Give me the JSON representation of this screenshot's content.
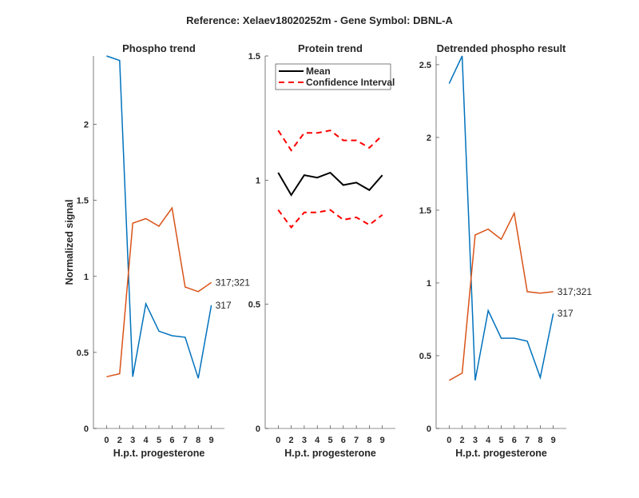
{
  "figure_title": "Reference:  Xelaev18020252m - Gene Symbol:  DBNL-A",
  "colors": {
    "blue": "#0072BD",
    "orange": "#D95319",
    "mean": "#000000",
    "ci": "#FF0000",
    "axis": "#262626"
  },
  "chart_data": [
    {
      "type": "line",
      "title": "Phospho trend",
      "xlabel": "H.p.t. progesterone",
      "ylabel": "Normalized signal",
      "categories": [
        "0",
        "2",
        "3",
        "4",
        "5",
        "6",
        "7",
        "8",
        "9"
      ],
      "ylim": [
        0,
        2.45
      ],
      "yticks": [
        0,
        0.5,
        1,
        1.5,
        2
      ],
      "ytick_labels": [
        "0",
        "0.5",
        "1",
        "1.5",
        "2"
      ],
      "series": [
        {
          "name": "317",
          "color": "blue",
          "values": [
            2.45,
            2.42,
            0.34,
            0.82,
            0.64,
            0.61,
            0.6,
            0.33,
            0.81
          ]
        },
        {
          "name": "317;321",
          "color": "orange",
          "values": [
            0.34,
            0.36,
            1.35,
            1.38,
            1.33,
            1.45,
            0.93,
            0.9,
            0.96
          ]
        }
      ]
    },
    {
      "type": "line",
      "title": "Protein trend",
      "xlabel": "H.p.t. progesterone",
      "ylabel": "",
      "categories": [
        "0",
        "2",
        "3",
        "4",
        "5",
        "6",
        "7",
        "8",
        "9"
      ],
      "ylim": [
        0,
        1.5
      ],
      "yticks": [
        0,
        0.5,
        1,
        1.5
      ],
      "ytick_labels": [
        "0",
        "0.5",
        "1",
        "1.5"
      ],
      "legend": {
        "placement": "top-right",
        "entries": [
          "Mean",
          "Confidence Interval"
        ]
      },
      "series": [
        {
          "name": "Mean",
          "color": "mean",
          "style": "solid",
          "values": [
            1.03,
            0.94,
            1.02,
            1.01,
            1.03,
            0.98,
            0.99,
            0.96,
            1.02
          ]
        },
        {
          "name": "Confidence Interval (upper)",
          "color": "ci",
          "style": "dashed",
          "values": [
            1.2,
            1.12,
            1.19,
            1.19,
            1.2,
            1.16,
            1.16,
            1.13,
            1.18
          ]
        },
        {
          "name": "Confidence Interval (lower)",
          "color": "ci",
          "style": "dashed",
          "values": [
            0.88,
            0.81,
            0.87,
            0.87,
            0.88,
            0.84,
            0.85,
            0.82,
            0.86
          ]
        }
      ]
    },
    {
      "type": "line",
      "title": "Detrended phospho result",
      "xlabel": "H.p.t. progesterone",
      "ylabel": "",
      "categories": [
        "0",
        "2",
        "3",
        "4",
        "5",
        "6",
        "7",
        "8",
        "9"
      ],
      "ylim": [
        0,
        2.56
      ],
      "yticks": [
        0,
        0.5,
        1,
        1.5,
        2,
        2.5
      ],
      "ytick_labels": [
        "0",
        "0.5",
        "1",
        "1.5",
        "2",
        "2.5"
      ],
      "series": [
        {
          "name": "317",
          "color": "blue",
          "values": [
            2.37,
            2.56,
            0.33,
            0.81,
            0.62,
            0.62,
            0.6,
            0.35,
            0.79
          ]
        },
        {
          "name": "317;321",
          "color": "orange",
          "values": [
            0.33,
            0.38,
            1.33,
            1.37,
            1.3,
            1.48,
            0.94,
            0.93,
            0.94
          ]
        }
      ]
    }
  ]
}
